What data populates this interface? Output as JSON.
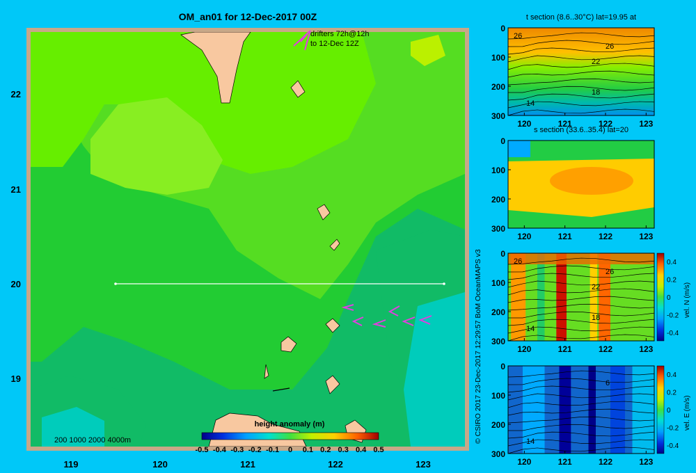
{
  "colors": {
    "background": "#00c8f8",
    "frame": "#c8a888",
    "land": "#f8c8a0",
    "drifter": "#e040e0",
    "ocean_high": "#66ee00",
    "ocean_mid": "#22cc33",
    "ocean_low": "#11bb66",
    "ocean_lowest": "#00ccbb"
  },
  "main_map": {
    "title": "OM_an01 for 12-Dec-2017 00Z",
    "drifter_note_line1": "drifters 72h@12h",
    "drifter_note_line2": "to 12-Dec 12Z",
    "depth_legend": "200  1000  2000  4000m",
    "x_ticks": [
      "119",
      "120",
      "121",
      "122",
      "123"
    ],
    "y_ticks": [
      "22",
      "21",
      "20",
      "19"
    ],
    "colorbar": {
      "title": "height anomaly (m)",
      "ticks": [
        "-0.5",
        "-0.4",
        "-0.3",
        "-0.2",
        "-0.1",
        "0",
        "0.1",
        "0.2",
        "0.3",
        "0.4",
        "0.5"
      ]
    }
  },
  "credit": "© CSIRO 2017   23-Dec-2017 12:29:57 BoM OceanMAPS v3",
  "section_x_ticks": [
    "120",
    "121",
    "122",
    "123"
  ],
  "section_y_ticks": [
    "0",
    "100",
    "200",
    "300"
  ],
  "sections": [
    {
      "title": "t section (8.6..30°C) lat=19.95 at",
      "contour_labels": [
        "26",
        "26",
        "22",
        "18",
        "14"
      ]
    },
    {
      "title": "s section (33.6..35.4) lat=20",
      "contour_labels": []
    },
    {
      "title": "",
      "contour_labels": [
        "26",
        "26",
        "22",
        "18",
        "14"
      ],
      "colorbar_label": "vel. N (m/s)",
      "colorbar_ticks": [
        "0.4",
        "0.2",
        "0",
        "-0.2",
        "-0.4"
      ]
    },
    {
      "title": "",
      "contour_labels": [
        "6",
        "14"
      ],
      "colorbar_label": "vel. E (m/s)",
      "colorbar_ticks": [
        "0.4",
        "0.2",
        "0",
        "-0.2",
        "-0.4"
      ]
    }
  ],
  "chart_data": [
    {
      "type": "heatmap",
      "title": "OM_an01 for 12-Dec-2017 00Z",
      "xlabel": "",
      "ylabel": "",
      "xlim": [
        118.5,
        123.5
      ],
      "ylim": [
        18.3,
        22.7
      ],
      "x_ticks": [
        119,
        120,
        121,
        122,
        123
      ],
      "y_ticks": [
        19,
        20,
        21,
        22
      ],
      "colorbar": {
        "label": "height anomaly (m)",
        "range": [
          -0.5,
          0.5
        ]
      },
      "section_line": {
        "lat": 20,
        "lon": [
          119.5,
          123.2
        ]
      },
      "drifter_arrows": [
        [
          121.65,
          22.55
        ],
        [
          121.65,
          19.8
        ],
        [
          121.85,
          19.68
        ],
        [
          122.1,
          19.62
        ],
        [
          122.35,
          19.72
        ],
        [
          122.5,
          19.6
        ],
        [
          122.8,
          19.65
        ],
        [
          123.0,
          19.65
        ]
      ]
    },
    {
      "type": "heatmap",
      "title": "t section (8.6..30°C) lat=19.95 at",
      "xlim": [
        119.6,
        123.2
      ],
      "ylim": [
        300,
        0
      ],
      "contours": [
        26,
        22,
        18,
        14
      ]
    },
    {
      "type": "heatmap",
      "title": "s section (33.6..35.4) lat=20",
      "xlim": [
        119.6,
        123.2
      ],
      "ylim": [
        300,
        0
      ]
    },
    {
      "type": "heatmap",
      "title": "",
      "xlim": [
        119.6,
        123.2
      ],
      "ylim": [
        300,
        0
      ],
      "colorbar": {
        "label": "vel. N (m/s)",
        "range": [
          -0.4,
          0.4
        ]
      },
      "contours": [
        26,
        22,
        18,
        14
      ]
    },
    {
      "type": "heatmap",
      "title": "",
      "xlim": [
        119.6,
        123.2
      ],
      "ylim": [
        300,
        0
      ],
      "colorbar": {
        "label": "vel. E (m/s)",
        "range": [
          -0.4,
          0.4
        ]
      },
      "contours": [
        6,
        14
      ]
    }
  ]
}
